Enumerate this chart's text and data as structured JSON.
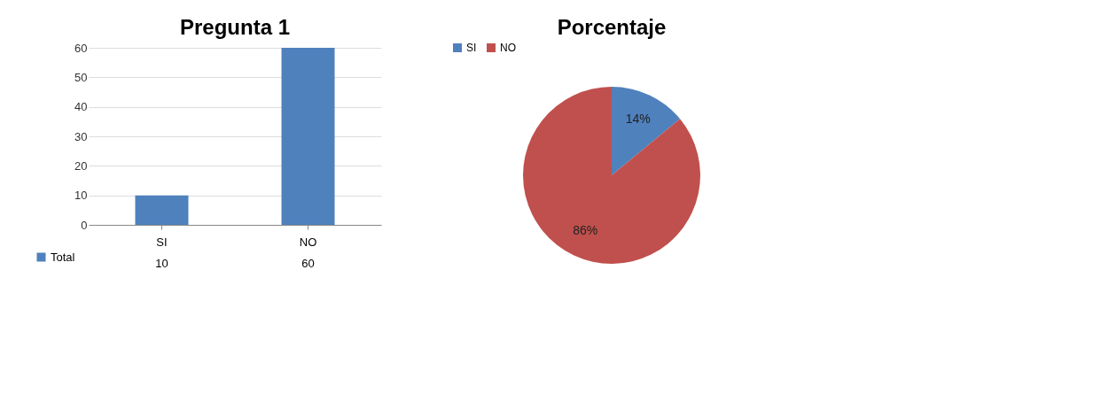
{
  "chart_data": [
    {
      "type": "bar",
      "title": "Pregunta 1",
      "categories": [
        "SI",
        "NO"
      ],
      "series": [
        {
          "name": "Total",
          "color": "#4f81bd",
          "values": [
            10,
            60
          ]
        }
      ],
      "ylim": [
        0,
        60
      ],
      "yticks": [
        0,
        10,
        20,
        30,
        40,
        50,
        60
      ],
      "grid": "y",
      "data_labels": true,
      "legend": "bottom left"
    },
    {
      "type": "pie",
      "title": "Porcentaje",
      "categories": [
        "SI",
        "NO"
      ],
      "values": [
        14,
        86
      ],
      "colors": [
        "#4f81bd",
        "#c0504d"
      ],
      "value_labels": [
        "14%",
        "86%"
      ],
      "legend": "top"
    }
  ]
}
